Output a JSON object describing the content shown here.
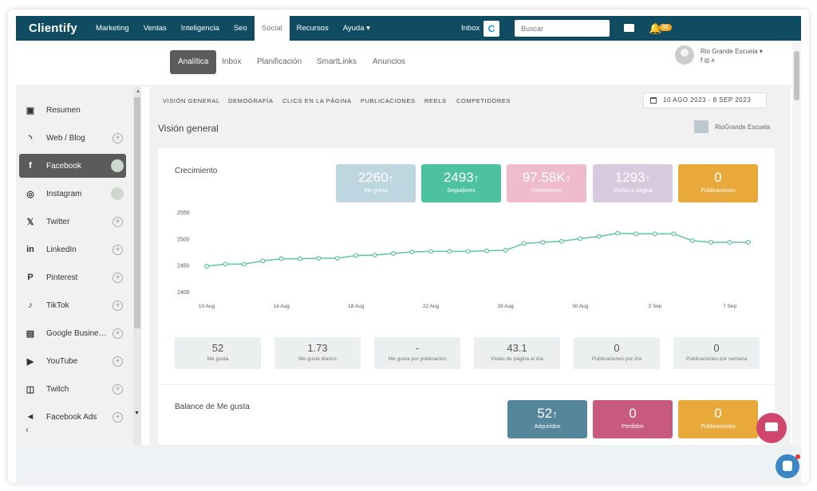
{
  "colors": {
    "topnav": "#0f4c62",
    "accent_green": "#4dc2a1",
    "line": "#5fc4a5"
  },
  "topnav": {
    "logo": "Clientify",
    "items": [
      "Marketing",
      "Ventas",
      "Inteligencia",
      "Seo",
      "Social",
      "Recursos",
      "Ayuda ▾"
    ],
    "active": "Social",
    "inbox_label": "Inbox",
    "search_placeholder": "Buscar",
    "notifications": "31"
  },
  "subnav": {
    "tabs": [
      "Analítica",
      "Inbox",
      "Planificación",
      "SmartLinks",
      "Anuncios"
    ],
    "active": "Analítica",
    "user_name": "Rio Grande Escuela  ▾",
    "user_icons": "f ◎ ʌ"
  },
  "sidebar": {
    "items": [
      {
        "label": "Resumen",
        "icon": "summary-icon",
        "glyph": "▣"
      },
      {
        "label": "Web / Blog",
        "icon": "rss-icon",
        "glyph": "◝"
      },
      {
        "label": "Facebook",
        "icon": "facebook-icon",
        "glyph": "f"
      },
      {
        "label": "Instagram",
        "icon": "instagram-icon",
        "glyph": "◎"
      },
      {
        "label": "Twitter",
        "icon": "x-icon",
        "glyph": "𝕏"
      },
      {
        "label": "LinkedIn",
        "icon": "linkedin-icon",
        "glyph": "in"
      },
      {
        "label": "Pinterest",
        "icon": "pinterest-icon",
        "glyph": "P"
      },
      {
        "label": "TikTok",
        "icon": "tiktok-icon",
        "glyph": "♪"
      },
      {
        "label": "Google Busine…",
        "icon": "google-business-icon",
        "glyph": "▤"
      },
      {
        "label": "YouTube",
        "icon": "youtube-icon",
        "glyph": "▶"
      },
      {
        "label": "Twitch",
        "icon": "twitch-icon",
        "glyph": "◫"
      },
      {
        "label": "Facebook Ads",
        "icon": "megaphone-icon",
        "glyph": "◄"
      }
    ],
    "collapse": "‹"
  },
  "content_tabs": [
    "VISIÓN GENERAL",
    "DEMOGRAFÍA",
    "CLICS EN LA PÁGINA",
    "PUBLICACIONES",
    "REELS",
    "COMPETIDORES"
  ],
  "date_range": "10 AGO 2023 - 8 SEP 2023",
  "page_title": "Visión general",
  "account_name": "RioGrande Escuela",
  "growth": {
    "title": "Crecimiento",
    "kpis": [
      {
        "value": "2260",
        "arrow": "↑",
        "label": "Me gusta",
        "color": "#bed6df"
      },
      {
        "value": "2493",
        "arrow": "↑",
        "label": "Seguidores",
        "color": "#4dc2a1"
      },
      {
        "value": "97.58K",
        "arrow": "↑",
        "label": "Impresiones",
        "color": "#eebccc"
      },
      {
        "value": "1293",
        "arrow": "↑",
        "label": "Visitas a página",
        "color": "#d9c9de"
      },
      {
        "value": "0",
        "arrow": "",
        "label": "Publicaciones",
        "color": "#e8a93a"
      }
    ]
  },
  "stats": [
    {
      "value": "52",
      "label": "Me gusta"
    },
    {
      "value": "1.73",
      "label": "Me gusta diarios"
    },
    {
      "value": "-",
      "label": "Me gusta por publicación"
    },
    {
      "value": "43.1",
      "label": "Vistas de página al día"
    },
    {
      "value": "0",
      "label": "Publicaciones por día"
    },
    {
      "value": "0",
      "label": "Publicaciones por semana"
    }
  ],
  "balance": {
    "title": "Balance de Me gusta",
    "kpis": [
      {
        "value": "52",
        "arrow": "↑",
        "label": "Adquiridos",
        "color": "#55869c"
      },
      {
        "value": "0",
        "arrow": "",
        "label": "Perdidos",
        "color": "#c75a7e"
      },
      {
        "value": "0",
        "arrow": "",
        "label": "Publicaciones",
        "color": "#e8a93a"
      }
    ]
  },
  "chart_data": {
    "type": "line",
    "yticks": [
      "2550",
      "2500",
      "2450",
      "2400"
    ],
    "ylim": [
      2400,
      2550
    ],
    "xticks": [
      "10 Aug",
      "14 Aug",
      "18 Aug",
      "22 Aug",
      "26 Aug",
      "30 Aug",
      "3 Sep",
      "7 Sep"
    ],
    "x": [
      "10 Aug",
      "11 Aug",
      "12 Aug",
      "13 Aug",
      "14 Aug",
      "15 Aug",
      "16 Aug",
      "17 Aug",
      "18 Aug",
      "19 Aug",
      "20 Aug",
      "21 Aug",
      "22 Aug",
      "23 Aug",
      "24 Aug",
      "25 Aug",
      "26 Aug",
      "27 Aug",
      "28 Aug",
      "29 Aug",
      "30 Aug",
      "31 Aug",
      "1 Sep",
      "2 Sep",
      "3 Sep",
      "4 Sep",
      "5 Sep",
      "6 Sep",
      "7 Sep",
      "8 Sep"
    ],
    "series": [
      {
        "values": [
          2448,
          2452,
          2452,
          2458,
          2462,
          2462,
          2463,
          2463,
          2468,
          2469,
          2472,
          2475,
          2476,
          2476,
          2476,
          2477,
          2478,
          2491,
          2493,
          2495,
          2500,
          2504,
          2510,
          2509,
          2509,
          2509,
          2496,
          2493,
          2493,
          2493
        ]
      }
    ]
  }
}
